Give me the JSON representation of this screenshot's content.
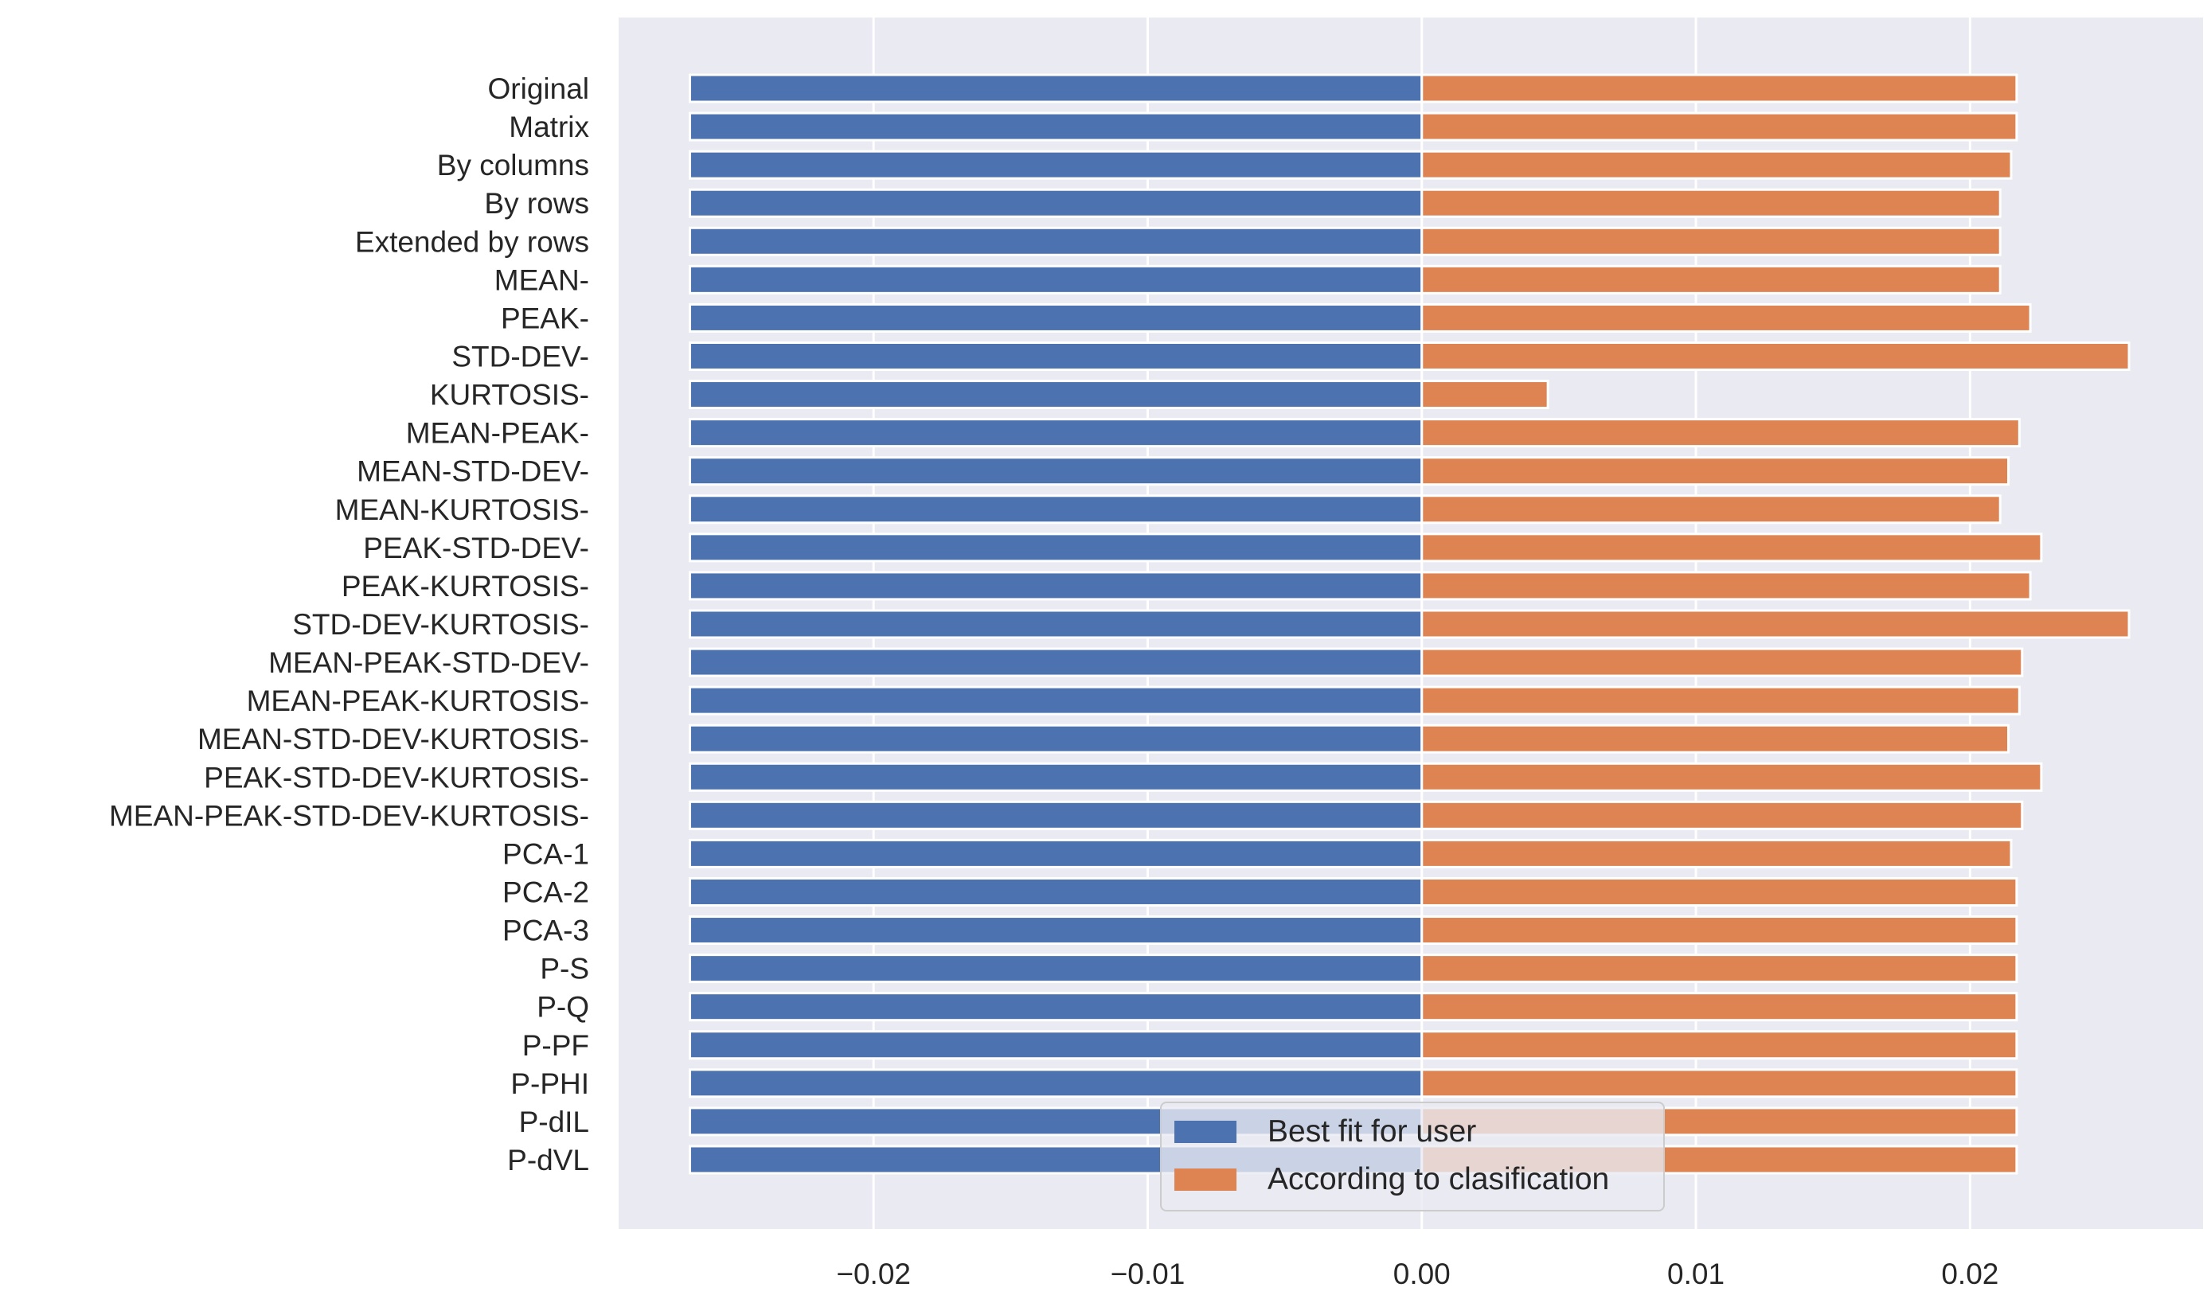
{
  "chart_data": {
    "type": "bar",
    "orientation": "horizontal",
    "title": "",
    "xlabel": "",
    "ylabel": "",
    "xlim": [
      -0.0293,
      0.0285
    ],
    "xticks": [
      -0.02,
      -0.01,
      0.0,
      0.01,
      0.02
    ],
    "xtick_labels": [
      "−0.02",
      "−0.01",
      "0.00",
      "0.01",
      "0.02"
    ],
    "grid": true,
    "legend_position": "lower-center",
    "categories": [
      "Original",
      "Matrix",
      "By columns",
      "By rows",
      "Extended by rows",
      "MEAN-",
      "PEAK-",
      "STD-DEV-",
      "KURTOSIS-",
      "MEAN-PEAK-",
      "MEAN-STD-DEV-",
      "MEAN-KURTOSIS-",
      "PEAK-STD-DEV-",
      "PEAK-KURTOSIS-",
      "STD-DEV-KURTOSIS-",
      "MEAN-PEAK-STD-DEV-",
      "MEAN-PEAK-KURTOSIS-",
      "MEAN-STD-DEV-KURTOSIS-",
      "PEAK-STD-DEV-KURTOSIS-",
      "MEAN-PEAK-STD-DEV-KURTOSIS-",
      "PCA-1",
      "PCA-2",
      "PCA-3",
      "P-S",
      "P-Q",
      "P-PF",
      "P-PHI",
      "P-dIL",
      "P-dVL"
    ],
    "series": [
      {
        "name": "Best fit for user",
        "color": "#4c72b0",
        "values": [
          -0.0267,
          -0.0267,
          -0.0267,
          -0.0267,
          -0.0267,
          -0.0267,
          -0.0267,
          -0.0267,
          -0.0267,
          -0.0267,
          -0.0267,
          -0.0267,
          -0.0267,
          -0.0267,
          -0.0267,
          -0.0267,
          -0.0267,
          -0.0267,
          -0.0267,
          -0.0267,
          -0.0267,
          -0.0267,
          -0.0267,
          -0.0267,
          -0.0267,
          -0.0267,
          -0.0267,
          -0.0267,
          -0.0267
        ]
      },
      {
        "name": "According to clasification",
        "color": "#dd8452",
        "values": [
          0.0217,
          0.0217,
          0.0215,
          0.0211,
          0.0211,
          0.0211,
          0.0222,
          0.0258,
          0.0046,
          0.0218,
          0.0214,
          0.0211,
          0.0226,
          0.0222,
          0.0258,
          0.0219,
          0.0218,
          0.0214,
          0.0226,
          0.0219,
          0.0215,
          0.0217,
          0.0217,
          0.0217,
          0.0217,
          0.0217,
          0.0217,
          0.0217,
          0.0217
        ]
      }
    ]
  },
  "colors": {
    "plot_background": "#eaeaf2",
    "grid": "#ffffff",
    "text": "#262626"
  }
}
